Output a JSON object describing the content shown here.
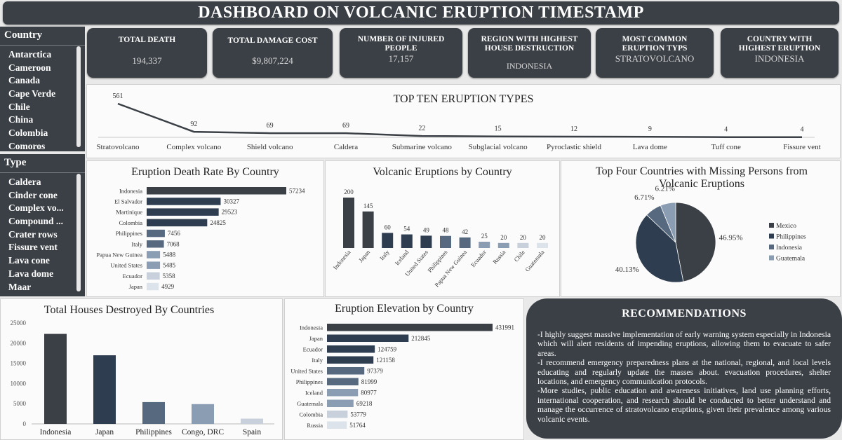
{
  "header": {
    "title": "DASHBOARD ON VOLCANIC ERUPTION TIMESTAMP"
  },
  "slicers": {
    "country": {
      "label": "Country",
      "items": [
        "Antarctica",
        "Cameroon",
        "Canada",
        "Cape Verde",
        "Chile",
        "China",
        "Colombia",
        "Comoros"
      ]
    },
    "type": {
      "label": "Type",
      "items": [
        "Caldera",
        "Cinder cone",
        "Complex vo...",
        "Compound ...",
        "Crater rows",
        "Fissure vent",
        "Lava cone",
        "Lava dome",
        "Maar"
      ]
    }
  },
  "kpis": [
    {
      "label": "TOTAL DEATH",
      "value": "194,337"
    },
    {
      "label": "TOTAL DAMAGE COST",
      "value": "$9,807,224"
    },
    {
      "label": "NUMBER OF INJURED PEOPLE",
      "value": "17,157"
    },
    {
      "label": "REGION WITH HIGHEST HOUSE DESTRUCTION",
      "value": "INDONESIA"
    },
    {
      "label": "MOST COMMON ERUPTION TYPS",
      "value": "STRATOVOLCANO"
    },
    {
      "label": "COUNTRY WITH HIGHEST ERUPTION",
      "value": "INDONESIA"
    }
  ],
  "recommendations": {
    "title": "RECOMMENDATIONS",
    "paragraphs": [
      "-I highly suggest massive implementation of early warning system especially in Indonesia which will alert residents of impending eruptions, allowing them to evacuate to safer areas.",
      "-I recommend emergency preparedness plans at the national, regional, and local levels educating and regularly update the masses about. evacuation procedures, shelter locations, and emergency communication protocols.",
      "-More studies, public education and awareness initiatives, land use planning efforts, international cooperation, and research should be conducted to better understand and manage the occurrence of stratovolcano eruptions, given their prevalence among various volcanic events."
    ]
  },
  "colors": {
    "dark": "#3b4046",
    "navy": "#2e3d50",
    "slate": "#56697f",
    "steel": "#8a9db3",
    "light": "#c7d0db",
    "pale": "#dde3ea"
  },
  "chart_data": [
    {
      "type": "line",
      "title": "TOP TEN ERUPTION TYPES",
      "categories": [
        "Stratovolcano",
        "Complex volcano",
        "Shield volcano",
        "Caldera",
        "Submarine volcano",
        "Subglacial volcano",
        "Pyroclastic shield",
        "Lava dome",
        "Tuff cone",
        "Fissure vent"
      ],
      "values": [
        561,
        92,
        69,
        69,
        22,
        15,
        12,
        9,
        4,
        4
      ]
    },
    {
      "type": "bar",
      "orientation": "horizontal",
      "title": "Eruption Death Rate By Country",
      "categories": [
        "Indonesia",
        "El Salvador",
        "Martinique",
        "Colombia",
        "Philippines",
        "Italy",
        "Papua New Guinea",
        "United States",
        "Ecuador",
        "Japan"
      ],
      "values": [
        57234,
        30327,
        29523,
        24825,
        7456,
        7068,
        5488,
        5485,
        5358,
        4929
      ]
    },
    {
      "type": "bar",
      "title": "Volcanic Eruptions by Country",
      "categories": [
        "Indonesia",
        "Japan",
        "Italy",
        "Iceland",
        "United States",
        "Philippines",
        "Papua New Guinea",
        "Ecuador",
        "Russia",
        "Chile",
        "Guatemala"
      ],
      "values": [
        200,
        145,
        60,
        54,
        49,
        48,
        42,
        25,
        20,
        20,
        20
      ]
    },
    {
      "type": "pie",
      "title": "Top Four Countries with Missing Persons from Volcanic Eruptions",
      "categories": [
        "Mexico",
        "Philippines",
        "Indonesia",
        "Guatemala"
      ],
      "values": [
        46.95,
        40.13,
        6.71,
        6.21
      ],
      "labels": [
        "46.95%",
        "40.13%",
        "6.71%",
        "6.21%"
      ],
      "legend": "right"
    },
    {
      "type": "bar",
      "title": "Total Houses Destroyed By Countries",
      "categories": [
        "Indonesia",
        "Japan",
        "Philippines",
        "Congo, DRC",
        "Spain"
      ],
      "values": [
        22300,
        17000,
        5400,
        4900,
        1300
      ],
      "yticks": [
        "0",
        "5000",
        "10000",
        "15000",
        "20000",
        "25000"
      ],
      "ylim": [
        0,
        25000
      ]
    },
    {
      "type": "bar",
      "orientation": "horizontal",
      "title": "Eruption Elevation by Country",
      "categories": [
        "Indonesia",
        "Japan",
        "Ecuador",
        "Italy",
        "United States",
        "Philippines",
        "Iceland",
        "Guatemala",
        "Colombia",
        "Russia"
      ],
      "values": [
        431991,
        212845,
        124759,
        121158,
        97379,
        81999,
        80977,
        69218,
        53779,
        51764
      ]
    }
  ]
}
